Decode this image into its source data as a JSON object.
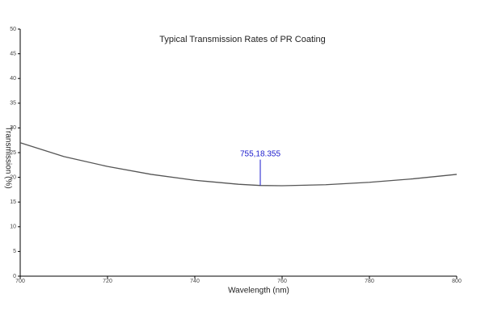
{
  "chart_data": {
    "type": "line",
    "title": "Typical Transmission Rates of PR Coating",
    "xlabel": "Wavelength (nm)",
    "ylabel": "Transmission (%)",
    "x": [
      700,
      710,
      720,
      730,
      740,
      750,
      755,
      760,
      770,
      780,
      790,
      800
    ],
    "series": [
      {
        "name": "Transmission",
        "color": "#555555",
        "values": [
          27,
          24.2,
          22.2,
          20.6,
          19.4,
          18.6,
          18.355,
          18.3,
          18.5,
          19.0,
          19.7,
          20.6
        ]
      }
    ],
    "xlim": [
      700,
      800
    ],
    "xticks": [
      700,
      720,
      740,
      760,
      780,
      800
    ],
    "ylim": [
      0,
      50
    ],
    "yticks": [
      0,
      5,
      10,
      15,
      20,
      25,
      30,
      35,
      40,
      45,
      50
    ],
    "annotation": {
      "text": "755,18.355",
      "x": 755,
      "y": 18.355,
      "color": "#1a1acc"
    }
  }
}
